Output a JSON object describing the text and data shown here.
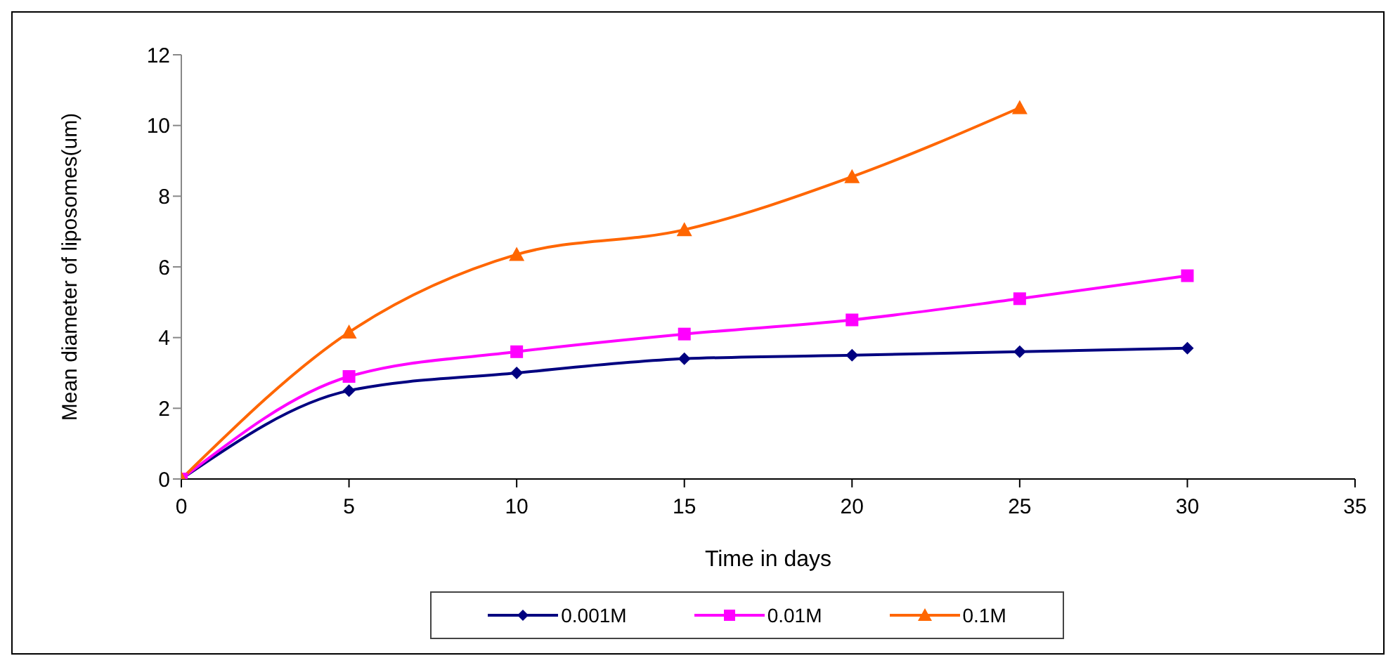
{
  "chart_data": {
    "type": "line",
    "xlabel": "Time in days",
    "ylabel": "Mean diameter of liposomes(um)",
    "xlim": [
      0,
      35
    ],
    "xticks": [
      0,
      5,
      10,
      15,
      20,
      25,
      30,
      35
    ],
    "ylim": [
      0,
      12
    ],
    "yticks": [
      0,
      2,
      4,
      6,
      8,
      10,
      12
    ],
    "grid": false,
    "legend": "bottom",
    "series": [
      {
        "name": "0.001M",
        "color": "#000080",
        "marker": "diamond",
        "x": [
          0,
          5,
          10,
          15,
          20,
          25,
          30
        ],
        "values": [
          0,
          2.5,
          3.0,
          3.4,
          3.5,
          3.6,
          3.7
        ]
      },
      {
        "name": "0.01M",
        "color": "#ff00ff",
        "marker": "square",
        "x": [
          0,
          5,
          10,
          15,
          20,
          25,
          30
        ],
        "values": [
          0,
          2.9,
          3.6,
          4.1,
          4.5,
          5.1,
          5.75
        ]
      },
      {
        "name": "0.1M",
        "color": "#ff6600",
        "marker": "triangle",
        "x": [
          0,
          5,
          10,
          15,
          20,
          25
        ],
        "values": [
          0,
          4.15,
          6.35,
          7.05,
          8.55,
          10.5
        ]
      }
    ]
  }
}
